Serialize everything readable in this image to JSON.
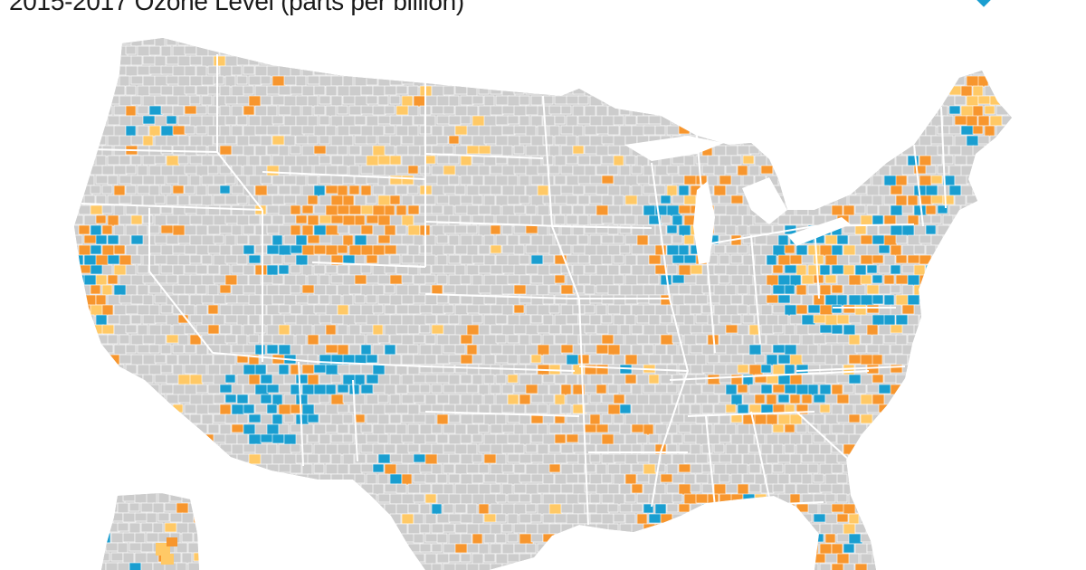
{
  "title": "2015-2017 Ozone Level (parts per billion)",
  "colors": {
    "no_data": "#cccccc",
    "level_low": "#ffc966",
    "level_mid": "#f7962e",
    "level_high": "#1a9ed0",
    "state_border": "#ffffff",
    "county_border": "#ffffff"
  },
  "legend": {
    "visible_marker_color": "#1a9ed0"
  }
}
